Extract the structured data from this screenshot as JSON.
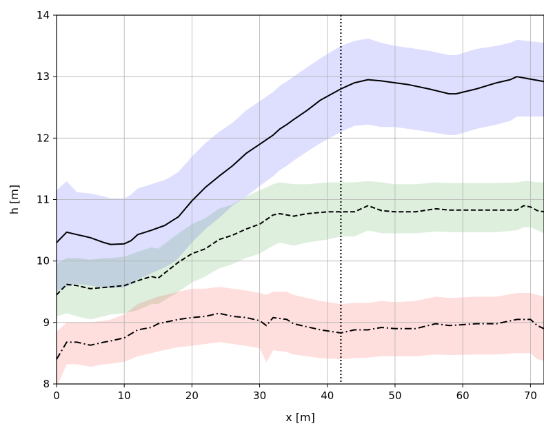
{
  "chart_data": {
    "type": "line",
    "xlabel": "x [m]",
    "ylabel": "h [m]",
    "xlim": [
      0,
      72
    ],
    "ylim": [
      8,
      14
    ],
    "xticks": [
      0,
      10,
      20,
      30,
      40,
      50,
      60,
      70
    ],
    "yticks": [
      8,
      9,
      10,
      11,
      12,
      13,
      14
    ],
    "grid": true,
    "vline": {
      "x": 42,
      "style": "dotted",
      "color": "#000000"
    },
    "series": [
      {
        "style": "solid",
        "color": "#000000",
        "band_color": "#0000ff",
        "x": [
          0,
          1.5,
          3,
          5,
          7,
          8,
          10,
          11,
          12,
          14,
          16,
          17,
          18,
          20,
          22,
          24,
          26,
          28,
          30,
          32,
          33,
          34,
          35,
          37,
          39,
          42,
          44,
          46,
          48,
          50,
          52,
          55,
          58,
          59,
          62,
          65,
          67,
          68,
          72
        ],
        "y": [
          10.3,
          10.47,
          10.43,
          10.38,
          10.3,
          10.27,
          10.28,
          10.33,
          10.43,
          10.5,
          10.58,
          10.65,
          10.72,
          10.98,
          11.2,
          11.38,
          11.55,
          11.75,
          11.9,
          12.05,
          12.15,
          12.22,
          12.3,
          12.45,
          12.62,
          12.8,
          12.9,
          12.95,
          12.93,
          12.9,
          12.87,
          12.8,
          12.72,
          12.72,
          12.8,
          12.9,
          12.95,
          13.0,
          12.92
        ],
        "lower": [
          9.5,
          9.58,
          9.63,
          9.6,
          9.56,
          9.56,
          9.57,
          9.62,
          9.7,
          9.8,
          9.9,
          9.96,
          10.05,
          10.3,
          10.52,
          10.7,
          10.9,
          11.05,
          11.22,
          11.38,
          11.48,
          11.55,
          11.63,
          11.78,
          11.92,
          12.1,
          12.2,
          12.22,
          12.18,
          12.18,
          12.15,
          12.1,
          12.05,
          12.05,
          12.15,
          12.22,
          12.28,
          12.35,
          12.35
        ],
        "upper": [
          11.15,
          11.3,
          11.12,
          11.1,
          11.05,
          11.02,
          11.02,
          11.08,
          11.18,
          11.25,
          11.32,
          11.38,
          11.45,
          11.7,
          11.92,
          12.1,
          12.25,
          12.45,
          12.6,
          12.75,
          12.85,
          12.92,
          13.0,
          13.15,
          13.3,
          13.5,
          13.58,
          13.62,
          13.55,
          13.5,
          13.47,
          13.42,
          13.35,
          13.35,
          13.45,
          13.5,
          13.55,
          13.6,
          13.55
        ]
      },
      {
        "style": "dashed",
        "color": "#000000",
        "band_color": "#008000",
        "x": [
          0,
          1.5,
          3,
          5,
          7,
          8,
          10,
          12,
          14,
          15,
          18,
          20,
          22,
          24,
          26,
          28,
          30,
          32,
          33,
          35,
          37,
          40,
          42,
          44,
          46,
          48,
          50,
          53,
          56,
          58,
          62,
          65,
          68,
          69,
          70,
          71,
          72
        ],
        "y": [
          9.45,
          9.62,
          9.6,
          9.55,
          9.57,
          9.58,
          9.6,
          9.68,
          9.75,
          9.72,
          9.98,
          10.12,
          10.2,
          10.35,
          10.42,
          10.52,
          10.6,
          10.75,
          10.77,
          10.73,
          10.77,
          10.8,
          10.8,
          10.8,
          10.9,
          10.82,
          10.8,
          10.8,
          10.85,
          10.83,
          10.83,
          10.83,
          10.83,
          10.9,
          10.88,
          10.82,
          10.8
        ],
        "lower": [
          9.1,
          9.15,
          9.1,
          9.05,
          9.1,
          9.13,
          9.15,
          9.2,
          9.3,
          9.3,
          9.5,
          9.65,
          9.75,
          9.88,
          9.95,
          10.05,
          10.12,
          10.25,
          10.3,
          10.25,
          10.3,
          10.35,
          10.4,
          10.4,
          10.5,
          10.45,
          10.45,
          10.45,
          10.48,
          10.47,
          10.47,
          10.47,
          10.5,
          10.55,
          10.55,
          10.5,
          10.45
        ],
        "upper": [
          9.95,
          10.05,
          10.05,
          10.02,
          10.05,
          10.05,
          10.07,
          10.15,
          10.22,
          10.2,
          10.45,
          10.6,
          10.7,
          10.85,
          10.92,
          11.05,
          11.15,
          11.25,
          11.28,
          11.25,
          11.25,
          11.28,
          11.28,
          11.28,
          11.3,
          11.28,
          11.25,
          11.25,
          11.28,
          11.27,
          11.27,
          11.27,
          11.28,
          11.3,
          11.3,
          11.28,
          11.28
        ]
      },
      {
        "style": "dashdot",
        "color": "#000000",
        "band_color": "#ff0000",
        "x": [
          0,
          1.5,
          3,
          5,
          7,
          8,
          10,
          12,
          14,
          15,
          18,
          20,
          22,
          24,
          26,
          28,
          30,
          31,
          32,
          34,
          35,
          37,
          39,
          42,
          44,
          46,
          48,
          50,
          53,
          56,
          58,
          62,
          65,
          68,
          70,
          71,
          72
        ],
        "y": [
          8.4,
          8.68,
          8.68,
          8.63,
          8.68,
          8.7,
          8.75,
          8.88,
          8.92,
          8.98,
          9.05,
          9.08,
          9.1,
          9.15,
          9.1,
          9.08,
          9.03,
          8.95,
          9.08,
          9.05,
          8.98,
          8.93,
          8.88,
          8.83,
          8.88,
          8.88,
          8.92,
          8.9,
          8.9,
          8.98,
          8.95,
          8.98,
          8.98,
          9.05,
          9.05,
          8.95,
          8.9
        ],
        "lower": [
          7.95,
          8.32,
          8.32,
          8.28,
          8.32,
          8.33,
          8.36,
          8.45,
          8.5,
          8.53,
          8.6,
          8.62,
          8.65,
          8.68,
          8.65,
          8.62,
          8.58,
          8.35,
          8.55,
          8.52,
          8.48,
          8.45,
          8.42,
          8.4,
          8.42,
          8.43,
          8.45,
          8.45,
          8.45,
          8.48,
          8.47,
          8.48,
          8.48,
          8.5,
          8.5,
          8.4,
          8.38
        ],
        "upper": [
          8.85,
          9.0,
          9.0,
          9.0,
          9.03,
          9.05,
          9.13,
          9.3,
          9.38,
          9.42,
          9.5,
          9.55,
          9.55,
          9.58,
          9.55,
          9.52,
          9.48,
          9.45,
          9.5,
          9.5,
          9.45,
          9.4,
          9.35,
          9.3,
          9.32,
          9.32,
          9.35,
          9.33,
          9.35,
          9.42,
          9.4,
          9.42,
          9.42,
          9.48,
          9.48,
          9.45,
          9.42
        ]
      }
    ]
  }
}
